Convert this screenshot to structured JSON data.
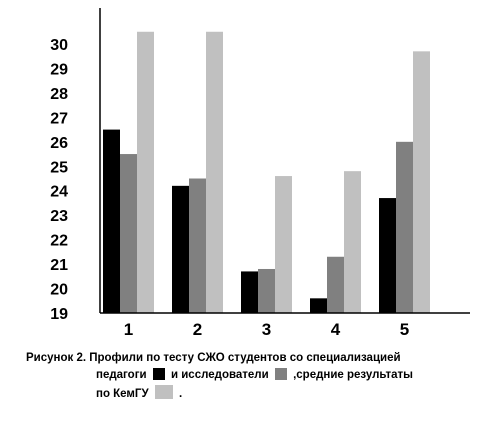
{
  "chart_data": {
    "type": "bar",
    "categories": [
      "1",
      "2",
      "3",
      "4",
      "5"
    ],
    "series": [
      {
        "values": [
          26.5,
          24.2,
          20.7,
          19.6,
          23.7
        ],
        "color": "#000000"
      },
      {
        "values": [
          25.5,
          24.5,
          20.8,
          21.3,
          26.0
        ],
        "color": "#808080"
      },
      {
        "values": [
          30.5,
          30.5,
          24.6,
          24.8,
          29.7
        ],
        "color": "#c0c0c0"
      }
    ],
    "yticks": [
      19,
      20,
      21,
      22,
      23,
      24,
      25,
      26,
      27,
      28,
      29,
      30
    ],
    "ylim": [
      19,
      31
    ],
    "grid": false
  },
  "caption": {
    "line1": "Рисунок 2. Профили по тесту СЖО студентов со специализацией",
    "line2a": "педагоги",
    "line2b": "и исследователи",
    "line2c": ",средние результаты",
    "line3a": "по КемГУ",
    "line3b": "."
  }
}
